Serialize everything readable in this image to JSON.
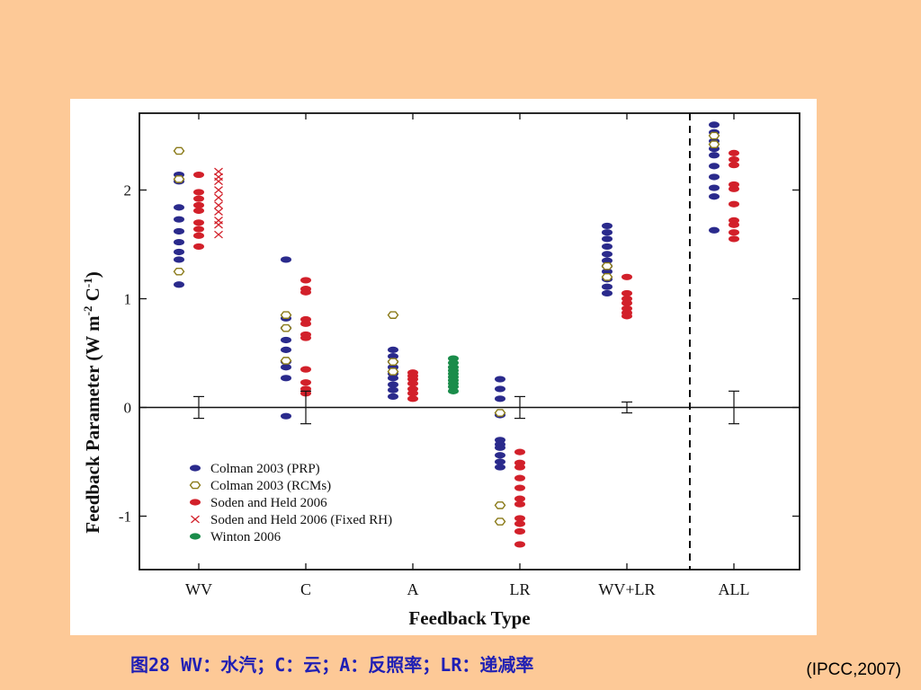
{
  "caption": "图28 WV：水汽；C：云；A：反照率；LR：递减率",
  "citation": "(IPCC,2007)",
  "chart_data": {
    "type": "scatter",
    "xlabel": "Feedback Type",
    "ylabel_main": "Feedback Parameter (W m",
    "ylabel_sup1": "-2",
    "ylabel_mid": "  C",
    "ylabel_sup2": "-1",
    "ylabel_end": ")",
    "categories": [
      "WV",
      "C",
      "A",
      "LR",
      "WV+LR",
      "ALL"
    ],
    "ylim": [
      -1.5,
      2.7
    ],
    "yticks": [
      -1,
      0,
      1,
      2
    ],
    "ytick_labels": [
      "-1",
      "0",
      "1",
      "2"
    ],
    "divider_after_category": "WV+LR",
    "legend_position": "bottom-left",
    "series": [
      {
        "name": "Colman 2003 (PRP)",
        "marker": "filled-oval",
        "color": "#2a2a8c",
        "points": [
          [
            "WV",
            2.14
          ],
          [
            "WV",
            2.08
          ],
          [
            "WV",
            1.84
          ],
          [
            "WV",
            1.73
          ],
          [
            "WV",
            1.62
          ],
          [
            "WV",
            1.52
          ],
          [
            "WV",
            1.43
          ],
          [
            "WV",
            1.36
          ],
          [
            "WV",
            1.13
          ],
          [
            "C",
            1.36
          ],
          [
            "C",
            0.82
          ],
          [
            "C",
            0.73
          ],
          [
            "C",
            0.62
          ],
          [
            "C",
            0.53
          ],
          [
            "C",
            0.42
          ],
          [
            "C",
            0.37
          ],
          [
            "C",
            0.27
          ],
          [
            "C",
            -0.08
          ],
          [
            "A",
            0.53
          ],
          [
            "A",
            0.47
          ],
          [
            "A",
            0.42
          ],
          [
            "A",
            0.37
          ],
          [
            "A",
            0.31
          ],
          [
            "A",
            0.27
          ],
          [
            "A",
            0.21
          ],
          [
            "A",
            0.16
          ],
          [
            "A",
            0.1
          ],
          [
            "LR",
            0.26
          ],
          [
            "LR",
            0.17
          ],
          [
            "LR",
            0.08
          ],
          [
            "LR",
            -0.07
          ],
          [
            "LR",
            -0.3
          ],
          [
            "LR",
            -0.34
          ],
          [
            "LR",
            -0.37
          ],
          [
            "LR",
            -0.44
          ],
          [
            "LR",
            -0.5
          ],
          [
            "LR",
            -0.55
          ],
          [
            "WV+LR",
            1.67
          ],
          [
            "WV+LR",
            1.61
          ],
          [
            "WV+LR",
            1.55
          ],
          [
            "WV+LR",
            1.48
          ],
          [
            "WV+LR",
            1.41
          ],
          [
            "WV+LR",
            1.35
          ],
          [
            "WV+LR",
            1.3
          ],
          [
            "WV+LR",
            1.25
          ],
          [
            "WV+LR",
            1.18
          ],
          [
            "WV+LR",
            1.11
          ],
          [
            "WV+LR",
            1.05
          ],
          [
            "ALL",
            2.6
          ],
          [
            "ALL",
            2.53
          ],
          [
            "ALL",
            2.45
          ],
          [
            "ALL",
            2.38
          ],
          [
            "ALL",
            2.32
          ],
          [
            "ALL",
            2.22
          ],
          [
            "ALL",
            2.12
          ],
          [
            "ALL",
            2.02
          ],
          [
            "ALL",
            1.94
          ],
          [
            "ALL",
            1.63
          ]
        ]
      },
      {
        "name": "Colman 2003 (RCMs)",
        "marker": "open-hexagon",
        "color": "#8a7a18",
        "points": [
          [
            "WV",
            2.36
          ],
          [
            "WV",
            2.1
          ],
          [
            "WV",
            1.25
          ],
          [
            "C",
            0.85
          ],
          [
            "C",
            0.73
          ],
          [
            "C",
            0.43
          ],
          [
            "A",
            0.85
          ],
          [
            "A",
            0.42
          ],
          [
            "A",
            0.33
          ],
          [
            "LR",
            -0.05
          ],
          [
            "LR",
            -0.9
          ],
          [
            "LR",
            -1.05
          ],
          [
            "WV+LR",
            1.3
          ],
          [
            "WV+LR",
            1.2
          ],
          [
            "ALL",
            2.5
          ],
          [
            "ALL",
            2.42
          ]
        ]
      },
      {
        "name": "Soden and Held 2006",
        "marker": "filled-oval",
        "color": "#d2202a",
        "points": [
          [
            "WV",
            2.14
          ],
          [
            "WV",
            1.98
          ],
          [
            "WV",
            1.92
          ],
          [
            "WV",
            1.86
          ],
          [
            "WV",
            1.81
          ],
          [
            "WV",
            1.7
          ],
          [
            "WV",
            1.64
          ],
          [
            "WV",
            1.58
          ],
          [
            "WV",
            1.48
          ],
          [
            "C",
            1.17
          ],
          [
            "C",
            1.09
          ],
          [
            "C",
            1.06
          ],
          [
            "C",
            0.81
          ],
          [
            "C",
            0.77
          ],
          [
            "C",
            0.67
          ],
          [
            "C",
            0.64
          ],
          [
            "C",
            0.35
          ],
          [
            "C",
            0.23
          ],
          [
            "C",
            0.17
          ],
          [
            "C",
            0.13
          ],
          [
            "A",
            0.32
          ],
          [
            "A",
            0.29
          ],
          [
            "A",
            0.26
          ],
          [
            "A",
            0.22
          ],
          [
            "A",
            0.17
          ],
          [
            "A",
            0.13
          ],
          [
            "A",
            0.08
          ],
          [
            "LR",
            -0.41
          ],
          [
            "LR",
            -0.51
          ],
          [
            "LR",
            -0.55
          ],
          [
            "LR",
            -0.65
          ],
          [
            "LR",
            -0.74
          ],
          [
            "LR",
            -0.84
          ],
          [
            "LR",
            -0.89
          ],
          [
            "LR",
            -1.02
          ],
          [
            "LR",
            -1.07
          ],
          [
            "LR",
            -1.14
          ],
          [
            "LR",
            -1.26
          ],
          [
            "WV+LR",
            1.2
          ],
          [
            "WV+LR",
            1.05
          ],
          [
            "WV+LR",
            1.0
          ],
          [
            "WV+LR",
            0.96
          ],
          [
            "WV+LR",
            0.91
          ],
          [
            "WV+LR",
            0.87
          ],
          [
            "WV+LR",
            0.84
          ],
          [
            "ALL",
            2.34
          ],
          [
            "ALL",
            2.28
          ],
          [
            "ALL",
            2.23
          ],
          [
            "ALL",
            2.05
          ],
          [
            "ALL",
            2.01
          ],
          [
            "ALL",
            1.87
          ],
          [
            "ALL",
            1.72
          ],
          [
            "ALL",
            1.68
          ],
          [
            "ALL",
            1.61
          ],
          [
            "ALL",
            1.55
          ]
        ]
      },
      {
        "name": "Soden and Held 2006 (Fixed RH)",
        "marker": "x",
        "color": "#d2202a",
        "points": [
          [
            "WV",
            2.17
          ],
          [
            "WV",
            2.12
          ],
          [
            "WV",
            2.08
          ],
          [
            "WV",
            2.0
          ],
          [
            "WV",
            1.93
          ],
          [
            "WV",
            1.86
          ],
          [
            "WV",
            1.8
          ],
          [
            "WV",
            1.72
          ],
          [
            "WV",
            1.68
          ],
          [
            "WV",
            1.59
          ]
        ]
      },
      {
        "name": "Winton 2006",
        "marker": "filled-oval",
        "color": "#1a8c4a",
        "points": [
          [
            "A",
            0.45
          ],
          [
            "A",
            0.41
          ],
          [
            "A",
            0.37
          ],
          [
            "A",
            0.34
          ],
          [
            "A",
            0.31
          ],
          [
            "A",
            0.28
          ],
          [
            "A",
            0.25
          ],
          [
            "A",
            0.22
          ],
          [
            "A",
            0.19
          ],
          [
            "A",
            0.15
          ]
        ]
      }
    ],
    "error_bars": [
      {
        "category": "WV",
        "center": 0.0,
        "low": -0.1,
        "high": 0.1
      },
      {
        "category": "C",
        "center": 0.0,
        "low": -0.15,
        "high": 0.15
      },
      {
        "category": "LR",
        "center": 0.0,
        "low": -0.1,
        "high": 0.1
      },
      {
        "category": "WV+LR",
        "center": 0.0,
        "low": -0.05,
        "high": 0.05
      },
      {
        "category": "ALL",
        "center": 0.0,
        "low": -0.15,
        "high": 0.15
      }
    ]
  }
}
